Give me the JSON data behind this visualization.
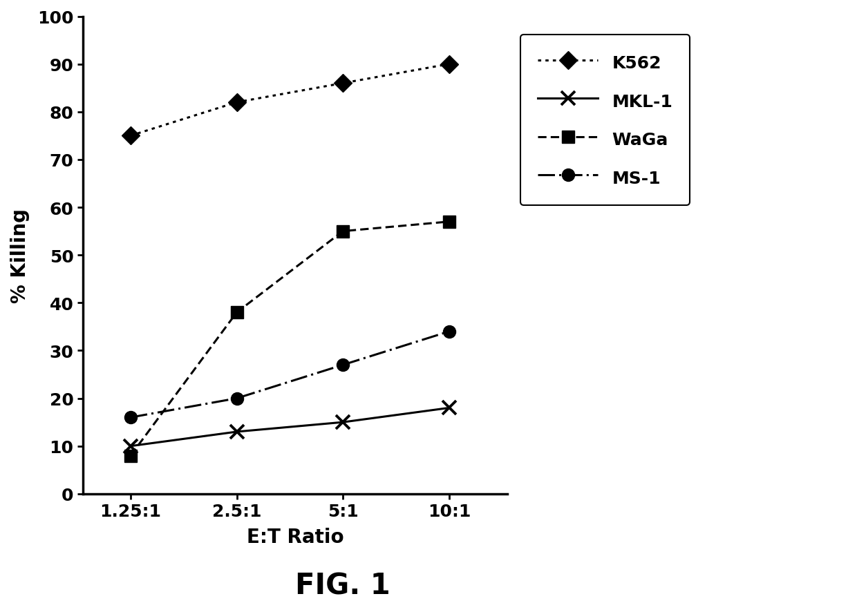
{
  "x_positions": [
    1,
    2,
    3,
    4
  ],
  "x_labels": [
    "1.25:1",
    "2.5:1",
    "5:1",
    "10:1"
  ],
  "series": {
    "K562": {
      "y": [
        75,
        82,
        86,
        90
      ],
      "marker": "D",
      "color": "#000000",
      "linewidth": 2.2,
      "markersize": 13,
      "label": "K562"
    },
    "MKL-1": {
      "y": [
        10,
        13,
        15,
        18
      ],
      "marker": "x",
      "color": "#000000",
      "linewidth": 2.2,
      "markersize": 14,
      "label": "MKL-1"
    },
    "WaGa": {
      "y": [
        8,
        38,
        55,
        57
      ],
      "marker": "s",
      "color": "#000000",
      "linewidth": 2.2,
      "markersize": 13,
      "label": "WaGa"
    },
    "MS-1": {
      "y": [
        16,
        20,
        27,
        34
      ],
      "marker": "o",
      "color": "#000000",
      "linewidth": 2.2,
      "markersize": 13,
      "label": "MS-1"
    }
  },
  "ylabel": "% Killing",
  "xlabel": "E:T Ratio",
  "fig_label": "FIG. 1",
  "ylim": [
    0,
    100
  ],
  "yticks": [
    0,
    10,
    20,
    30,
    40,
    50,
    60,
    70,
    80,
    90,
    100
  ],
  "background_color": "#ffffff",
  "axis_label_fontsize": 20,
  "tick_fontsize": 18,
  "legend_fontsize": 18,
  "fig_label_fontsize": 30
}
